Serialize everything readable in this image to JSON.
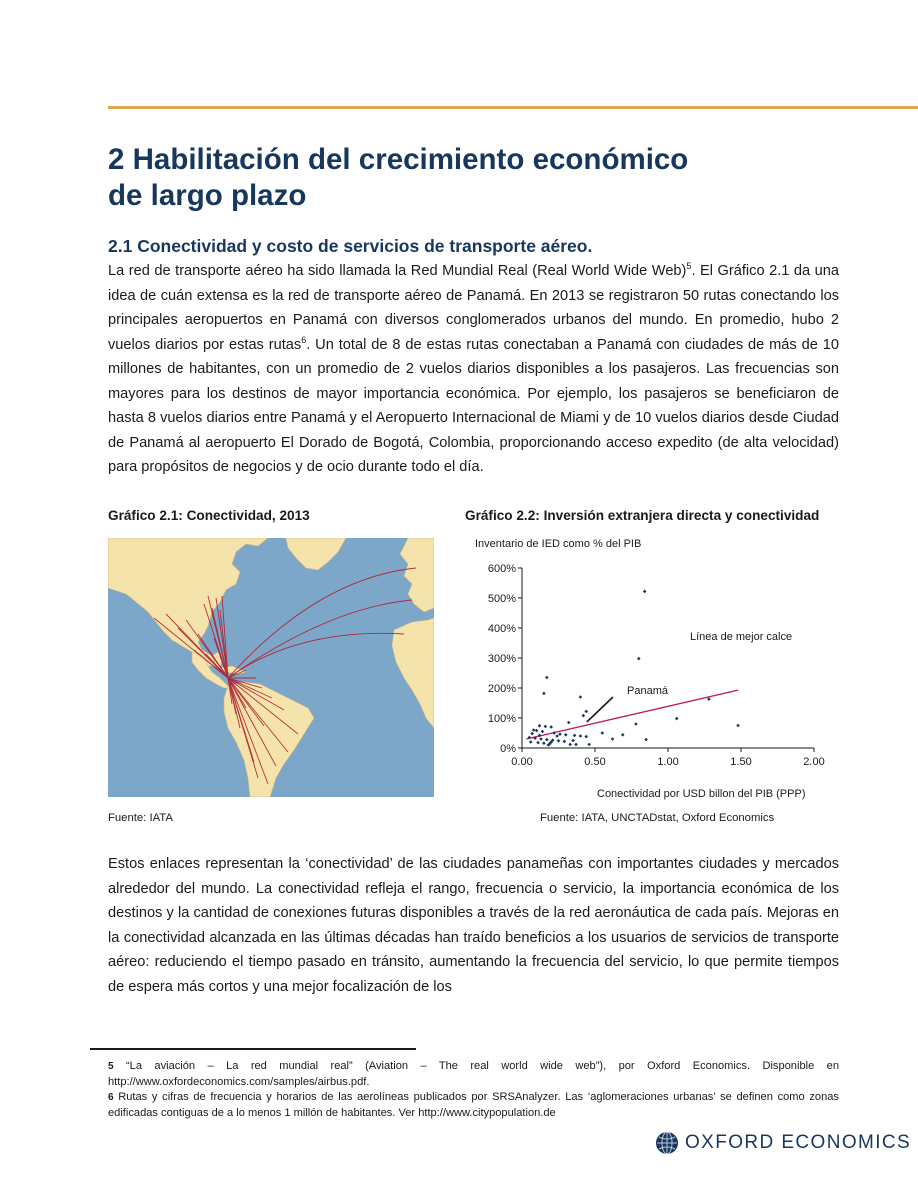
{
  "section_title": {
    "line1": "2 Habilitación del crecimiento económico",
    "line2": "de largo plazo"
  },
  "subsection_title": "2.1 Conectividad y costo de servicios de transporte aéreo.",
  "paragraph1": {
    "part1": "La red de transporte aéreo ha sido llamada la Red Mundial Real (Real World Wide Web)",
    "fn_ref1": "5",
    "part2": ".  El Gráfico 2.1 da una idea de cuán extensa es la red de transporte aéreo de Panamá.  En 2013 se registraron 50 rutas conectando los principales aeropuertos en Panamá con diversos conglomerados urbanos del mundo.  En promedio, hubo 2 vuelos diarios por estas rutas",
    "fn_ref2": "6",
    "part3": ".  Un total de 8 de estas rutas conectaban a Panamá con ciudades de más de 10 millones de habitantes, con un promedio de 2 vuelos diarios disponibles a los pasajeros.  Las frecuencias son mayores para los destinos de mayor importancia económica.  Por ejemplo, los pasajeros se beneficiaron de hasta 8 vuelos diarios entre Panamá y el Aeropuerto Internacional de Miami y de 10 vuelos diarios desde Ciudad de Panamá al aeropuerto El Dorado de Bogotá, Colombia, proporcionando acceso expedito (de alta velocidad) para propósitos de negocios y de ocio durante todo el día."
  },
  "figure1": {
    "title": "Gráfico 2.1: Conectividad, 2013",
    "source": "Fuente: IATA"
  },
  "figure2": {
    "title": "Gráfico 2.2: Inversión extranjera directa y conectividad",
    "source": "Fuente: IATA, UNCTADstat, Oxford Economics"
  },
  "chart_data": {
    "type": "scatter",
    "ylabel": "Inventario de IED como % del PIB",
    "xlabel": "Conectividad por USD billon del PIB (PPP)",
    "xlim": [
      0,
      2
    ],
    "ylim": [
      0,
      600
    ],
    "x_ticks": [
      "0.00",
      "0.50",
      "1.00",
      "1.50",
      "2.00"
    ],
    "y_ticks": [
      "0%",
      "100%",
      "200%",
      "300%",
      "400%",
      "500%",
      "600%"
    ],
    "annotations": {
      "fit_label": "Línea de mejor calce",
      "highlight_label": "Panamá"
    },
    "highlight_point": [
      0.43,
      80
    ],
    "fit_line": [
      [
        0.03,
        30
      ],
      [
        1.48,
        193
      ]
    ],
    "points": [
      [
        0.84,
        522
      ],
      [
        0.8,
        298
      ],
      [
        0.17,
        235
      ],
      [
        0.15,
        182
      ],
      [
        0.4,
        170
      ],
      [
        1.28,
        163
      ],
      [
        0.44,
        122
      ],
      [
        0.42,
        108
      ],
      [
        1.06,
        98
      ],
      [
        0.32,
        85
      ],
      [
        0.78,
        80
      ],
      [
        1.48,
        75
      ],
      [
        0.12,
        74
      ],
      [
        0.16,
        72
      ],
      [
        0.2,
        70
      ],
      [
        0.08,
        60
      ],
      [
        0.1,
        58
      ],
      [
        0.14,
        55
      ],
      [
        0.22,
        50
      ],
      [
        0.26,
        46
      ],
      [
        0.3,
        44
      ],
      [
        0.36,
        42
      ],
      [
        0.4,
        40
      ],
      [
        0.44,
        38
      ],
      [
        0.05,
        35
      ],
      [
        0.09,
        33
      ],
      [
        0.13,
        30
      ],
      [
        0.17,
        28
      ],
      [
        0.21,
        26
      ],
      [
        0.25,
        24
      ],
      [
        0.29,
        22
      ],
      [
        0.06,
        20
      ],
      [
        0.11,
        18
      ],
      [
        0.15,
        16
      ],
      [
        0.19,
        14
      ],
      [
        0.33,
        12
      ],
      [
        0.37,
        12
      ],
      [
        0.46,
        12
      ],
      [
        0.55,
        50
      ],
      [
        0.62,
        30
      ],
      [
        0.69,
        44
      ],
      [
        0.85,
        28
      ],
      [
        0.07,
        48
      ],
      [
        0.18,
        10
      ],
      [
        0.24,
        40
      ],
      [
        0.35,
        25
      ],
      [
        0.12,
        42
      ],
      [
        0.2,
        20
      ]
    ]
  },
  "paragraph2": "Estos enlaces representan la ‘conectividad’ de las ciudades panameñas con importantes ciudades y mercados alrededor del mundo.  La conectividad refleja el rango, frecuencia o servicio, la importancia económica de los destinos y la cantidad de conexiones futuras disponibles a través de la red aeronáutica de cada país.  Mejoras en la conectividad alcanzada en las últimas décadas han traído beneficios a los usuarios de servicios de transporte aéreo: reduciendo el tiempo pasado en tránsito, aumentando la frecuencia del servicio, lo que permite tiempos de espera más cortos y una mejor focalización de los",
  "footnotes": [
    {
      "number": "5",
      "text": "“La aviación – La red mundial real” (Aviation – The real world wide web”), por Oxford Economics. Disponible en http://www.oxfordeconomics.com/samples/airbus.pdf."
    },
    {
      "number": "6",
      "text": "Rutas y cifras de frecuencia y horarios de las aerolíneas publicados por SRSAnalyzer. Las ‘aglomeraciones urbanas’ se definen como zonas edificadas contiguas de a lo menos 1 millón de habitantes. Ver http://www.citypopulation.de"
    }
  ],
  "logo_text": "OXFORD ECONOMICS",
  "colors": {
    "accent_rule": "#e2a64c",
    "heading": "#17375e",
    "fit_line": "#c0185a",
    "points": "#17375e",
    "ocean": "#7da7c9",
    "land": "#f5e3ac",
    "routes": "#b01e2c"
  }
}
